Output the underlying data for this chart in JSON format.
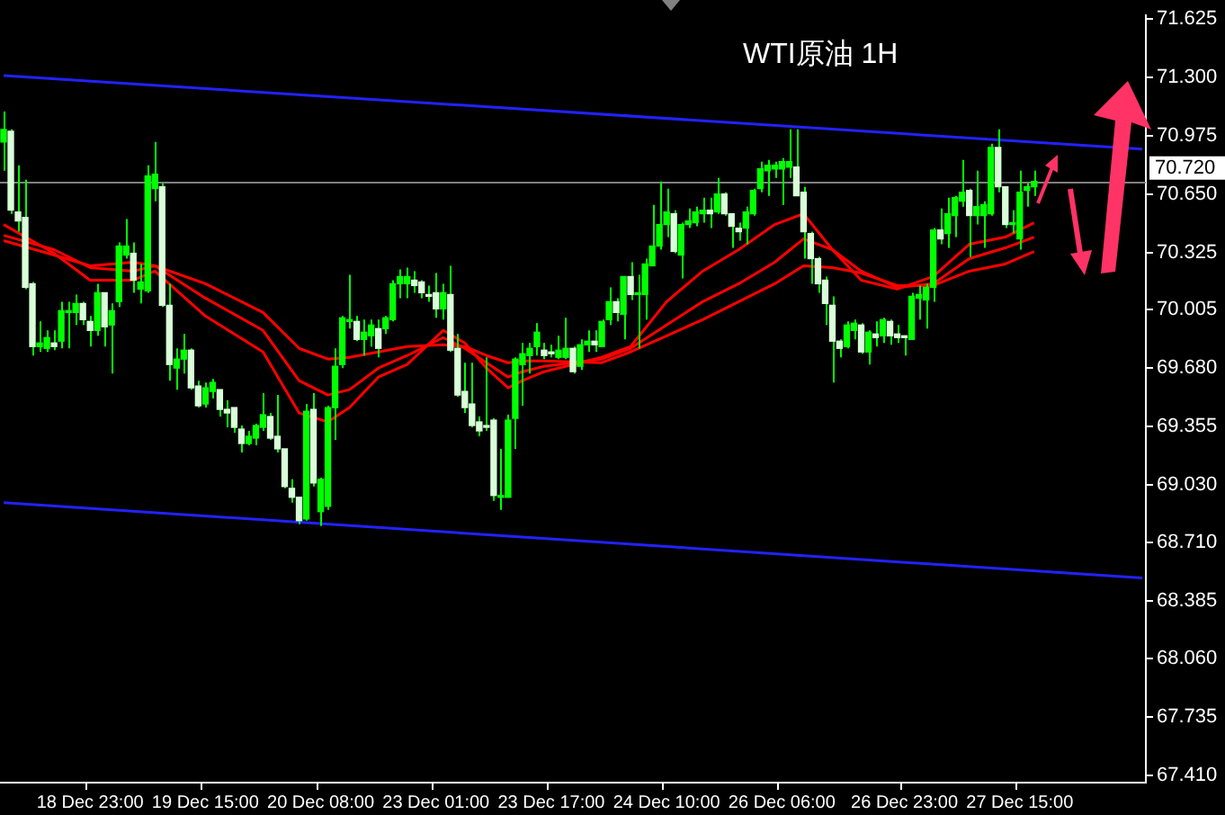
{
  "chart_data": {
    "type": "candlestick",
    "title": "WTI原油 1H",
    "color": "#00ff00",
    "colors": [
      "#00ff00",
      "#d8ffd8",
      "#d8ffd8",
      "#d8ffd8",
      "#d8ffd8",
      "#00ff00",
      "#00ff00",
      "#d8ffd8",
      "#00ff00",
      "#00ff00",
      "#00ff00",
      "#d8ffd8",
      "#d8ffd8",
      "#00ff00",
      "#d8ffd8",
      "#00ff00",
      "#00ff00",
      "#00ff00",
      "#d8ffd8",
      "#00ff00",
      "#00ff00",
      "#00ff00",
      "#d8ffd8",
      "#d8ffd8",
      "#00ff00",
      "#00ff00",
      "#d8ffd8",
      "#d8ffd8",
      "#00ff00",
      "#00ff00",
      "#d8ffd8",
      "#d8ffd8",
      "#d8ffd8",
      "#d8ffd8",
      "#00ff00",
      "#00ff00",
      "#00ff00",
      "#d8ffd8",
      "#d8ffd8",
      "#d8ffd8",
      "#d8ffd8",
      "#d8ffd8",
      "#00ff00",
      "#d8ffd8",
      "#00ff00",
      "#00ff00",
      "#00ff00",
      "#00ff00",
      "#00ff00",
      "#d8ffd8",
      "#00ff00",
      "#00ff00",
      "#d8ffd8",
      "#00ff00",
      "#00ff00",
      "#00ff00",
      "#00ff00",
      "#d8ffd8",
      "#d8ffd8",
      "#d8ffd8",
      "#d8ffd8",
      "#00ff00",
      "#d8ffd8",
      "#d8ffd8",
      "#d8ffd8",
      "#d8ffd8",
      "#d8ffd8",
      "#d8ffd8",
      "#d8ffd8",
      "#00ff00",
      "#00ff00",
      "#00ff00",
      "#00ff00",
      "#00ff00",
      "#00ff00",
      "#d8ffd8",
      "#d8ffd8",
      "#00ff00",
      "#00ff00",
      "#d8ffd8",
      "#00ff00",
      "#00ff00",
      "#d8ffd8",
      "#00ff00",
      "#00ff00",
      "#d8ffd8",
      "#00ff00",
      "#d8ffd8",
      "#00ff00",
      "#00ff00",
      "#00ff00",
      "#00ff00",
      "#00ff00",
      "#d8ffd8",
      "#00ff00",
      "#00ff00",
      "#00ff00",
      "#00ff00",
      "#d8ffd8",
      "#00ff00",
      "#d8ffd8",
      "#d8ffd8",
      "#d8ffd8",
      "#00ff00",
      "#00ff00",
      "#00ff00",
      "#00ff00",
      "#00ff00",
      "#00ff00",
      "#00ff00",
      "#d8ffd8",
      "#d8ffd8",
      "#d8ffd8",
      "#d8ffd8",
      "#d8ffd8",
      "#d8ffd8",
      "#d8ffd8",
      "#00ff00",
      "#00ff00",
      "#d8ffd8",
      "#00ff00",
      "#d8ffd8",
      "#00ff00",
      "#d8ffd8",
      "#d8ffd8",
      "#d8ffd8",
      "#00ff00",
      "#00ff00",
      "#00ff00",
      "#00ff00",
      "#d8ffd8",
      "#00ff00",
      "#00ff00",
      "#00ff00",
      "#d8ffd8",
      "#00ff00",
      "#00ff00",
      "#00ff00",
      "#d8ffd8",
      "#d8ffd8",
      "#00ff00",
      "#00ff00",
      "#00ff00",
      "#00ff00",
      null,
      null,
      null,
      null,
      null,
      null,
      null,
      null,
      null,
      null,
      null,
      null,
      null,
      null,
      null
    ],
    "categories": [
      null,
      null,
      null,
      null,
      null,
      null,
      null,
      null,
      null,
      null,
      null,
      null,
      "18 Dec 23:00",
      null,
      null,
      null,
      null,
      null,
      null,
      null,
      null,
      null,
      null,
      null,
      null,
      null,
      null,
      null,
      "19 Dec 15:00",
      null,
      null,
      null,
      null,
      null,
      null,
      null,
      null,
      null,
      null,
      null,
      null,
      null,
      null,
      null,
      "20 Dec 08:00",
      null,
      null,
      null,
      null,
      null,
      null,
      null,
      null,
      null,
      null,
      null,
      null,
      null,
      null,
      null,
      "23 Dec 01:00",
      null,
      null,
      null,
      null,
      null,
      null,
      null,
      null,
      null,
      null,
      null,
      null,
      null,
      null,
      null,
      "23 Dec 17:00",
      null,
      null,
      null,
      null,
      null,
      null,
      null,
      null,
      null,
      null,
      null,
      null,
      null,
      null,
      null,
      "24 Dec 10:00",
      null,
      null,
      null,
      null,
      null,
      null,
      null,
      null,
      null,
      null,
      null,
      null,
      null,
      null,
      null,
      "26 Dec 06:00",
      null,
      null,
      null,
      null,
      null,
      null,
      null,
      null,
      null,
      null,
      null,
      null,
      null,
      null,
      null,
      null,
      "26 Dec 23:00",
      null,
      null,
      null,
      null,
      null,
      null,
      null,
      null,
      null,
      null,
      null,
      null,
      null,
      null,
      null,
      "27 Dec 15:00",
      null,
      null,
      null,
      null,
      null,
      null,
      null,
      null,
      null,
      null,
      null,
      null,
      null,
      null,
      null,
      null,
      null
    ],
    "ohlc": [
      [
        70.94,
        71.11,
        70.78,
        71.01
      ],
      [
        71.0,
        71.01,
        70.54,
        70.56
      ],
      [
        70.55,
        70.81,
        70.44,
        70.5
      ],
      [
        70.52,
        70.73,
        70.12,
        70.13
      ],
      [
        70.15,
        70.16,
        69.75,
        69.8
      ],
      [
        69.8,
        69.94,
        69.77,
        69.82
      ],
      [
        69.79,
        69.89,
        69.77,
        69.85
      ],
      [
        69.82,
        69.89,
        69.78,
        69.8
      ],
      [
        69.83,
        70.05,
        69.79,
        70.0
      ],
      [
        69.99,
        70.05,
        69.79,
        70.0
      ],
      [
        69.99,
        70.09,
        69.92,
        70.04
      ],
      [
        70.04,
        70.05,
        69.92,
        69.95
      ],
      [
        69.94,
        69.97,
        69.8,
        69.89
      ],
      [
        69.89,
        70.15,
        69.86,
        70.1
      ],
      [
        70.1,
        70.1,
        69.8,
        69.91
      ],
      [
        69.92,
        70.04,
        69.65,
        70.0
      ],
      [
        70.05,
        70.38,
        70.02,
        70.36
      ],
      [
        70.31,
        70.51,
        70.29,
        70.36
      ],
      [
        70.32,
        70.38,
        70.1,
        70.17
      ],
      [
        70.12,
        70.26,
        70.04,
        70.16
      ],
      [
        70.11,
        70.81,
        70.1,
        70.75
      ],
      [
        70.68,
        70.94,
        70.61,
        70.76
      ],
      [
        70.69,
        70.71,
        70.02,
        70.03
      ],
      [
        70.03,
        70.15,
        69.61,
        69.7
      ],
      [
        69.68,
        69.79,
        69.56,
        69.73
      ],
      [
        69.73,
        69.87,
        69.65,
        69.78
      ],
      [
        69.78,
        69.79,
        69.56,
        69.57
      ],
      [
        69.58,
        69.61,
        69.46,
        69.47
      ],
      [
        69.48,
        69.6,
        69.46,
        69.57
      ],
      [
        69.55,
        69.62,
        69.51,
        69.6
      ],
      [
        69.56,
        69.56,
        69.41,
        69.45
      ],
      [
        69.45,
        69.5,
        69.35,
        69.43
      ],
      [
        69.46,
        69.46,
        69.32,
        69.35
      ],
      [
        69.34,
        69.36,
        69.21,
        69.26
      ],
      [
        69.26,
        69.33,
        69.25,
        69.3
      ],
      [
        69.29,
        69.37,
        69.25,
        69.36
      ],
      [
        69.35,
        69.54,
        69.33,
        69.42
      ],
      [
        69.41,
        69.43,
        69.28,
        69.29
      ],
      [
        69.3,
        69.53,
        69.21,
        69.23
      ],
      [
        69.23,
        69.23,
        69.01,
        69.02
      ],
      [
        69.01,
        69.06,
        68.93,
        68.96
      ],
      [
        68.96,
        68.96,
        68.81,
        68.83
      ],
      [
        68.84,
        69.48,
        68.83,
        69.44
      ],
      [
        69.45,
        69.54,
        69.02,
        69.04
      ],
      [
        68.88,
        69.07,
        68.8,
        69.06
      ],
      [
        68.91,
        69.47,
        68.89,
        69.46
      ],
      [
        69.46,
        69.79,
        69.28,
        69.69
      ],
      [
        69.7,
        69.97,
        69.68,
        69.96
      ],
      [
        69.94,
        70.2,
        69.9,
        69.95
      ],
      [
        69.94,
        69.97,
        69.83,
        69.84
      ],
      [
        69.84,
        69.95,
        69.75,
        69.88
      ],
      [
        69.86,
        69.95,
        69.8,
        69.92
      ],
      [
        69.9,
        69.95,
        69.74,
        69.79
      ],
      [
        69.9,
        69.97,
        69.87,
        69.96
      ],
      [
        69.95,
        70.17,
        69.94,
        70.15
      ],
      [
        70.15,
        70.23,
        70.07,
        70.19
      ],
      [
        70.15,
        70.24,
        70.07,
        70.19
      ],
      [
        70.17,
        70.22,
        70.1,
        70.14
      ],
      [
        70.16,
        70.17,
        70.07,
        70.1
      ],
      [
        70.09,
        70.14,
        70.05,
        70.08
      ],
      [
        70.1,
        70.21,
        69.96,
        70.01
      ],
      [
        70.01,
        70.15,
        69.95,
        70.1
      ],
      [
        70.09,
        70.25,
        69.77,
        69.78
      ],
      [
        69.79,
        69.87,
        69.52,
        69.53
      ],
      [
        69.55,
        69.71,
        69.43,
        69.46
      ],
      [
        69.48,
        69.71,
        69.35,
        69.36
      ],
      [
        69.38,
        69.41,
        69.3,
        69.33
      ],
      [
        69.36,
        69.74,
        69.33,
        69.35
      ],
      [
        69.39,
        69.4,
        68.94,
        68.97
      ],
      [
        68.96,
        69.23,
        68.89,
        68.97
      ],
      [
        68.96,
        69.42,
        68.96,
        69.39
      ],
      [
        69.4,
        69.74,
        69.23,
        69.73
      ],
      [
        69.7,
        69.82,
        69.47,
        69.76
      ],
      [
        69.75,
        69.82,
        69.65,
        69.79
      ],
      [
        69.8,
        69.93,
        69.75,
        69.88
      ],
      [
        69.78,
        69.82,
        69.73,
        69.75
      ],
      [
        69.77,
        69.81,
        69.74,
        69.76
      ],
      [
        69.74,
        69.86,
        69.73,
        69.78
      ],
      [
        69.74,
        69.96,
        69.73,
        69.79
      ],
      [
        69.79,
        69.8,
        69.65,
        69.66
      ],
      [
        69.69,
        69.84,
        69.67,
        69.81
      ],
      [
        69.81,
        69.89,
        69.77,
        69.83
      ],
      [
        69.83,
        69.89,
        69.77,
        69.81
      ],
      [
        69.8,
        69.95,
        69.8,
        69.94
      ],
      [
        69.95,
        70.13,
        69.92,
        70.05
      ],
      [
        70.05,
        70.07,
        69.94,
        69.99
      ],
      [
        69.98,
        70.19,
        69.84,
        70.19
      ],
      [
        70.19,
        70.27,
        70.06,
        70.09
      ],
      [
        70.09,
        70.2,
        69.79,
        70.1
      ],
      [
        70.09,
        70.29,
        69.95,
        70.26
      ],
      [
        70.25,
        70.59,
        70.25,
        70.36
      ],
      [
        70.36,
        70.72,
        70.34,
        70.48
      ],
      [
        70.48,
        70.68,
        70.41,
        70.55
      ],
      [
        70.54,
        70.56,
        70.32,
        70.33
      ],
      [
        70.31,
        70.49,
        70.18,
        70.48
      ],
      [
        70.48,
        70.57,
        70.46,
        70.5
      ],
      [
        70.49,
        70.58,
        70.47,
        70.55
      ],
      [
        70.54,
        70.63,
        70.49,
        70.56
      ],
      [
        70.56,
        70.63,
        70.46,
        70.54
      ],
      [
        70.55,
        70.74,
        70.54,
        70.65
      ],
      [
        70.65,
        70.66,
        70.53,
        70.54
      ],
      [
        70.54,
        70.54,
        70.35,
        70.47
      ],
      [
        70.46,
        70.49,
        70.39,
        70.44
      ],
      [
        70.46,
        70.58,
        70.37,
        70.55
      ],
      [
        70.54,
        70.68,
        70.53,
        70.67
      ],
      [
        70.68,
        70.83,
        70.66,
        70.79
      ],
      [
        70.78,
        70.84,
        70.64,
        70.81
      ],
      [
        70.79,
        70.83,
        70.74,
        70.81
      ],
      [
        70.79,
        70.85,
        70.59,
        70.83
      ],
      [
        70.8,
        71.01,
        70.74,
        70.83
      ],
      [
        70.8,
        71.01,
        70.64,
        70.64
      ],
      [
        70.66,
        70.69,
        70.29,
        70.44
      ],
      [
        70.43,
        70.44,
        70.15,
        70.29
      ],
      [
        70.29,
        70.3,
        70.1,
        70.15
      ],
      [
        70.17,
        70.19,
        69.92,
        70.04
      ],
      [
        70.03,
        70.08,
        69.6,
        69.83
      ],
      [
        69.83,
        69.84,
        69.74,
        69.79
      ],
      [
        69.8,
        69.94,
        69.79,
        69.92
      ],
      [
        69.89,
        69.95,
        69.84,
        69.93
      ],
      [
        69.92,
        69.93,
        69.76,
        69.77
      ],
      [
        69.77,
        69.89,
        69.7,
        69.88
      ],
      [
        69.87,
        69.94,
        69.8,
        69.85
      ],
      [
        69.86,
        69.96,
        69.82,
        69.95
      ],
      [
        69.94,
        69.95,
        69.81,
        69.86
      ],
      [
        69.87,
        69.92,
        69.82,
        69.85
      ],
      [
        69.86,
        69.86,
        69.75,
        69.85
      ],
      [
        69.84,
        70.1,
        69.84,
        70.08
      ],
      [
        70.07,
        70.14,
        69.95,
        70.09
      ],
      [
        70.06,
        70.15,
        69.9,
        70.13
      ],
      [
        70.13,
        70.46,
        70.05,
        70.45
      ],
      [
        70.45,
        70.57,
        70.37,
        70.4
      ],
      [
        70.43,
        70.63,
        70.35,
        70.54
      ],
      [
        70.53,
        70.64,
        70.41,
        70.63
      ],
      [
        70.61,
        70.84,
        70.58,
        70.66
      ],
      [
        70.67,
        70.68,
        70.3,
        70.53
      ],
      [
        70.53,
        70.78,
        70.48,
        70.58
      ],
      [
        70.53,
        70.61,
        70.35,
        70.59
      ],
      [
        70.54,
        70.93,
        70.53,
        70.91
      ],
      [
        70.91,
        71.01,
        70.66,
        70.69
      ],
      [
        70.69,
        70.69,
        70.46,
        70.48
      ],
      [
        70.48,
        70.56,
        70.43,
        70.49
      ],
      [
        70.4,
        70.78,
        70.34,
        70.66
      ],
      [
        70.67,
        70.71,
        70.58,
        70.69
      ],
      [
        70.69,
        70.78,
        70.64,
        70.72
      ],
      null,
      null,
      null,
      null,
      null,
      null,
      null,
      null,
      null,
      null,
      null,
      null,
      null,
      null,
      null
    ],
    "series": [
      {
        "type": "line",
        "color": "#ff0000",
        "values": [
          70.48,
          null,
          null,
          null,
          null,
          null,
          null,
          70.32,
          null,
          null,
          null,
          null,
          70.17,
          null,
          null,
          null,
          null,
          null,
          70.17,
          null,
          null,
          70.22,
          null,
          null,
          null,
          null,
          null,
          null,
          69.97,
          null,
          null,
          null,
          null,
          null,
          null,
          null,
          69.77,
          null,
          null,
          null,
          null,
          69.43,
          null,
          null,
          null,
          69.38,
          null,
          null,
          69.46,
          null,
          null,
          null,
          69.63,
          null,
          null,
          null,
          69.7,
          null,
          null,
          null,
          null,
          69.89,
          null,
          null,
          69.82,
          null,
          null,
          69.68,
          null,
          null,
          69.57,
          null,
          69.61,
          null,
          null,
          69.66,
          null,
          null,
          null,
          null,
          null,
          null,
          null,
          69.74,
          null,
          null,
          null,
          69.8,
          null,
          null,
          null,
          null,
          70.05,
          null,
          null,
          null,
          null,
          70.22,
          null,
          null,
          null,
          null,
          70.34,
          null,
          null,
          null,
          null,
          70.48,
          null,
          null,
          null,
          70.54,
          null,
          null,
          null,
          70.34,
          null,
          null,
          null,
          70.17,
          null,
          null,
          null,
          null,
          70.12,
          null,
          null,
          null,
          null,
          70.19,
          null,
          null,
          null,
          null,
          70.37,
          null,
          null,
          null,
          null,
          70.41,
          null,
          null,
          null,
          70.49,
          null,
          null,
          null,
          null,
          null,
          null,
          null,
          null,
          null,
          null,
          null,
          null,
          null,
          null,
          null
        ]
      },
      {
        "type": "line",
        "color": "#ff0000",
        "values": [
          70.42,
          null,
          null,
          null,
          null,
          null,
          null,
          70.34,
          null,
          null,
          null,
          null,
          70.24,
          null,
          null,
          null,
          null,
          null,
          70.22,
          null,
          null,
          70.25,
          null,
          null,
          null,
          null,
          null,
          null,
          70.07,
          null,
          null,
          null,
          null,
          null,
          null,
          null,
          69.89,
          null,
          null,
          null,
          null,
          69.61,
          null,
          null,
          null,
          69.53,
          null,
          null,
          69.56,
          null,
          null,
          null,
          69.68,
          null,
          null,
          null,
          69.75,
          null,
          null,
          null,
          null,
          69.85,
          null,
          null,
          69.79,
          null,
          null,
          69.71,
          null,
          null,
          69.63,
          null,
          69.66,
          null,
          null,
          69.69,
          null,
          null,
          null,
          null,
          null,
          null,
          null,
          69.73,
          null,
          null,
          null,
          69.79,
          null,
          null,
          null,
          null,
          69.92,
          null,
          null,
          null,
          null,
          70.05,
          null,
          null,
          null,
          null,
          70.15,
          null,
          null,
          null,
          null,
          70.27,
          null,
          null,
          null,
          70.4,
          null,
          null,
          null,
          70.34,
          null,
          null,
          null,
          70.22,
          null,
          null,
          null,
          null,
          70.13,
          null,
          null,
          null,
          null,
          70.15,
          null,
          null,
          null,
          null,
          70.29,
          null,
          null,
          null,
          null,
          70.35,
          null,
          null,
          null,
          70.41,
          null,
          null,
          null,
          null,
          null,
          null,
          null,
          null,
          null,
          null,
          null,
          null,
          null,
          null,
          null
        ]
      },
      {
        "type": "line",
        "color": "#ff0000",
        "values": [
          70.39,
          null,
          null,
          null,
          null,
          null,
          null,
          70.31,
          null,
          null,
          null,
          null,
          70.25,
          null,
          null,
          null,
          null,
          null,
          70.27,
          null,
          null,
          70.25,
          null,
          null,
          null,
          null,
          null,
          null,
          70.15,
          null,
          null,
          null,
          null,
          null,
          null,
          null,
          69.99,
          null,
          null,
          null,
          null,
          69.79,
          null,
          null,
          null,
          69.73,
          null,
          null,
          69.74,
          null,
          null,
          null,
          69.77,
          null,
          null,
          null,
          69.8,
          null,
          null,
          null,
          null,
          69.81,
          null,
          null,
          69.8,
          null,
          null,
          69.75,
          null,
          null,
          69.71,
          null,
          69.72,
          null,
          null,
          69.72,
          null,
          null,
          null,
          null,
          null,
          null,
          null,
          69.71,
          null,
          null,
          null,
          69.77,
          null,
          null,
          null,
          null,
          69.86,
          null,
          null,
          null,
          null,
          69.95,
          null,
          null,
          null,
          null,
          70.05,
          null,
          null,
          null,
          null,
          70.15,
          null,
          null,
          null,
          70.25,
          null,
          null,
          null,
          70.24,
          null,
          null,
          null,
          70.21,
          null,
          null,
          null,
          null,
          70.14,
          null,
          null,
          null,
          null,
          70.14,
          null,
          null,
          null,
          null,
          70.22,
          null,
          null,
          null,
          null,
          70.26,
          null,
          null,
          null,
          70.33,
          null,
          null,
          null,
          null,
          null,
          null,
          null,
          null,
          null,
          null,
          null,
          null,
          null,
          null,
          null
        ]
      },
      {
        "type": "line",
        "color": "#2222ff",
        "values": [
          71.31,
          null,
          null,
          null,
          null,
          null,
          null,
          null,
          null,
          null,
          null,
          null,
          null,
          null,
          null,
          null,
          null,
          null,
          null,
          null,
          null,
          null,
          null,
          null,
          null,
          null,
          null,
          null,
          null,
          null,
          null,
          null,
          null,
          null,
          null,
          null,
          null,
          null,
          null,
          null,
          null,
          null,
          null,
          null,
          null,
          null,
          null,
          null,
          null,
          null,
          null,
          null,
          null,
          null,
          null,
          null,
          null,
          null,
          null,
          null,
          null,
          null,
          null,
          null,
          null,
          null,
          null,
          null,
          null,
          null,
          null,
          null,
          null,
          null,
          null,
          null,
          null,
          null,
          null,
          null,
          null,
          null,
          null,
          null,
          null,
          null,
          null,
          null,
          null,
          null,
          null,
          null,
          null,
          null,
          null,
          null,
          null,
          null,
          null,
          null,
          null,
          null,
          null,
          null,
          null,
          null,
          null,
          null,
          null,
          null,
          null,
          null,
          null,
          null,
          null,
          null,
          null,
          null,
          null,
          null,
          null,
          null,
          null,
          null,
          null,
          null,
          null,
          null,
          null,
          null,
          null,
          null,
          null,
          null,
          null,
          null,
          null,
          null,
          null,
          null,
          null,
          null,
          null,
          null,
          null,
          null,
          null,
          null,
          null,
          null,
          null,
          null,
          null,
          null,
          null,
          null,
          null,
          null,
          70.9
        ]
      },
      {
        "type": "line",
        "color": "#2222ff",
        "values": [
          68.93,
          null,
          null,
          null,
          null,
          null,
          null,
          null,
          null,
          null,
          null,
          null,
          null,
          null,
          null,
          null,
          null,
          null,
          null,
          null,
          null,
          null,
          null,
          null,
          null,
          null,
          null,
          null,
          null,
          null,
          null,
          null,
          null,
          null,
          null,
          null,
          null,
          null,
          null,
          null,
          null,
          null,
          null,
          null,
          null,
          null,
          null,
          null,
          null,
          null,
          null,
          null,
          null,
          null,
          null,
          null,
          null,
          null,
          null,
          null,
          null,
          null,
          null,
          null,
          null,
          null,
          null,
          null,
          null,
          null,
          null,
          null,
          null,
          null,
          null,
          null,
          null,
          null,
          null,
          null,
          null,
          null,
          null,
          null,
          null,
          null,
          null,
          null,
          null,
          null,
          null,
          null,
          null,
          null,
          null,
          null,
          null,
          null,
          null,
          null,
          null,
          null,
          null,
          null,
          null,
          null,
          null,
          null,
          null,
          null,
          null,
          null,
          null,
          null,
          null,
          null,
          null,
          null,
          null,
          null,
          null,
          null,
          null,
          null,
          null,
          null,
          null,
          null,
          null,
          null,
          null,
          null,
          null,
          null,
          null,
          null,
          null,
          null,
          null,
          null,
          null,
          null,
          null,
          null,
          null,
          null,
          null,
          null,
          null,
          null,
          null,
          null,
          null,
          null,
          null,
          null,
          null,
          null,
          68.51
        ]
      }
    ],
    "ylim": [
      67.37,
      71.645
    ],
    "yticks": [
      71.625,
      {
        "value": 71.3,
        "label": "71.300"
      },
      70.975,
      {
        "value": 70.65,
        "label": "70.650"
      },
      70.325,
      70.005,
      {
        "value": 69.68,
        "label": "69.680"
      },
      69.355,
      {
        "value": 69.03,
        "label": "69.030"
      },
      {
        "value": 68.71,
        "label": "68.710"
      },
      68.385,
      {
        "value": 68.06,
        "label": "68.060"
      },
      67.735,
      {
        "value": 67.41,
        "label": "67.410"
      }
    ],
    "ref_lines": [
      {
        "axis": "y",
        "value": 70.72,
        "label": "70.720",
        "color": "#808080"
      }
    ]
  }
}
